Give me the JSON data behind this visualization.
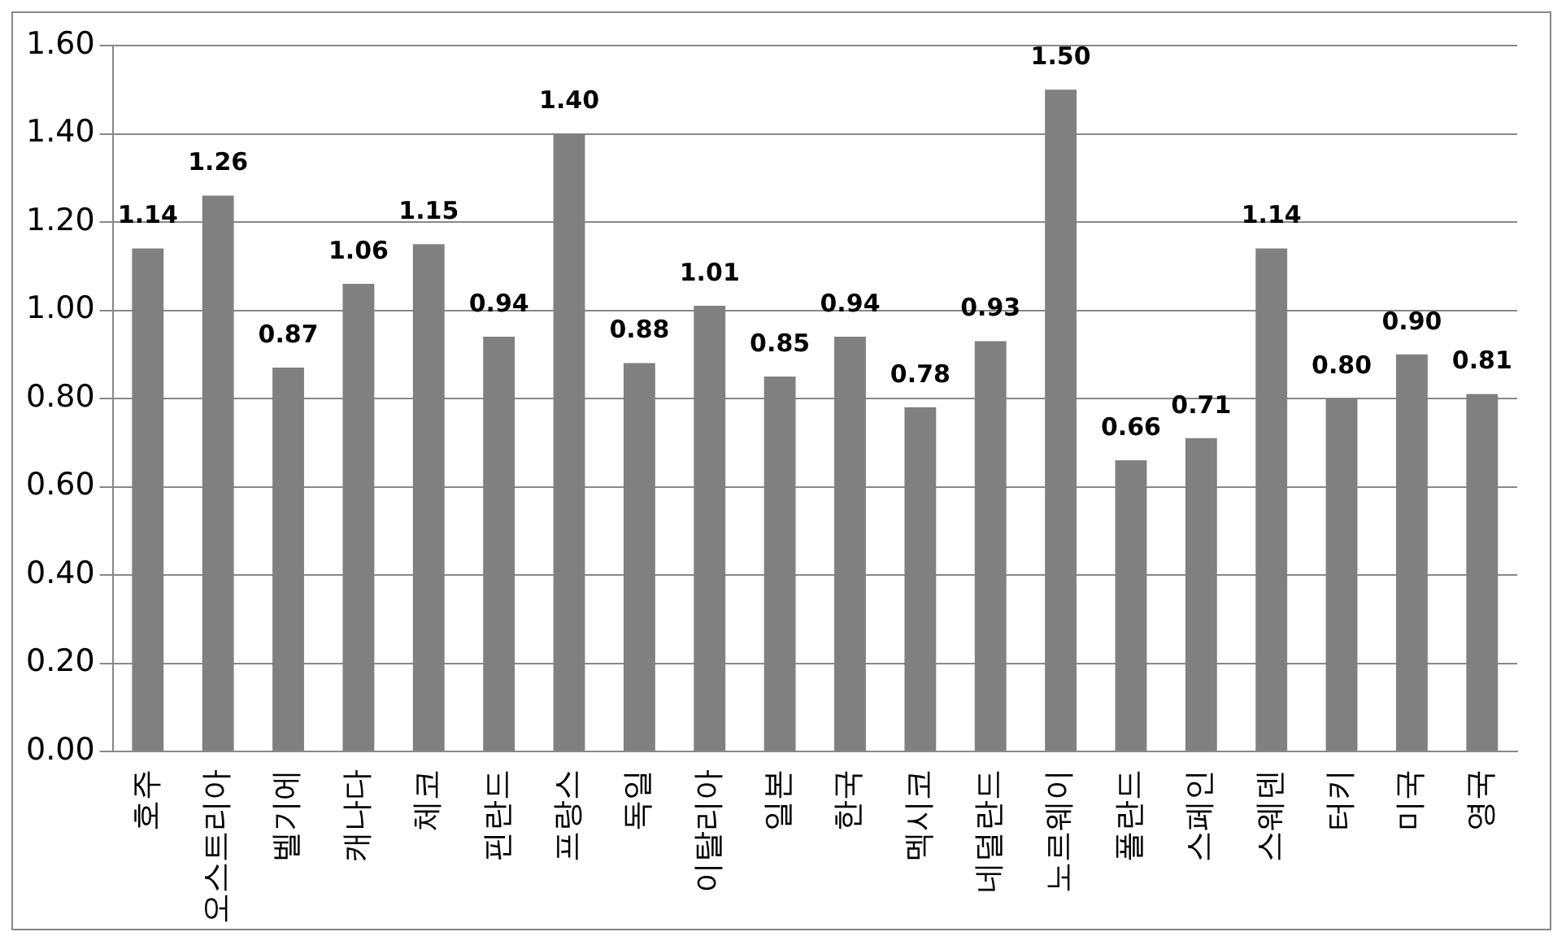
{
  "chart_data": {
    "type": "bar",
    "categories": [
      "호주",
      "오스트리아",
      "벨기에",
      "캐나다",
      "체코",
      "핀란드",
      "프랑스",
      "독일",
      "이탈리아",
      "일본",
      "한국",
      "멕시코",
      "네덜란드",
      "노르웨이",
      "폴란드",
      "스페인",
      "스웨덴",
      "터키",
      "미국",
      "영국"
    ],
    "values": [
      1.14,
      1.26,
      0.87,
      1.06,
      1.15,
      0.94,
      1.4,
      0.88,
      1.01,
      0.85,
      0.94,
      0.78,
      0.93,
      1.5,
      0.66,
      0.71,
      1.14,
      0.8,
      0.9,
      0.81
    ],
    "value_labels": [
      "1.14",
      "1.26",
      "0.87",
      "1.06",
      "1.15",
      "0.94",
      "1.40",
      "0.88",
      "1.01",
      "0.85",
      "0.94",
      "0.78",
      "0.93",
      "1.50",
      "0.66",
      "0.71",
      "1.14",
      "0.80",
      "0.90",
      "0.81"
    ],
    "color": "#808080",
    "ylim": [
      0,
      1.6
    ],
    "yticks": [
      {
        "value": 0,
        "label": "0.00"
      },
      {
        "value": 0.2,
        "label": "0.20"
      },
      {
        "value": 0.4,
        "label": "0.40"
      },
      {
        "value": 0.6,
        "label": "0.60"
      },
      {
        "value": 0.8,
        "label": "0.80"
      },
      {
        "value": 1.0,
        "label": "1.00"
      },
      {
        "value": 1.2,
        "label": "1.20"
      },
      {
        "value": 1.4,
        "label": "1.40"
      },
      {
        "value": 1.6,
        "label": "1.60"
      }
    ],
    "grid": "y"
  }
}
